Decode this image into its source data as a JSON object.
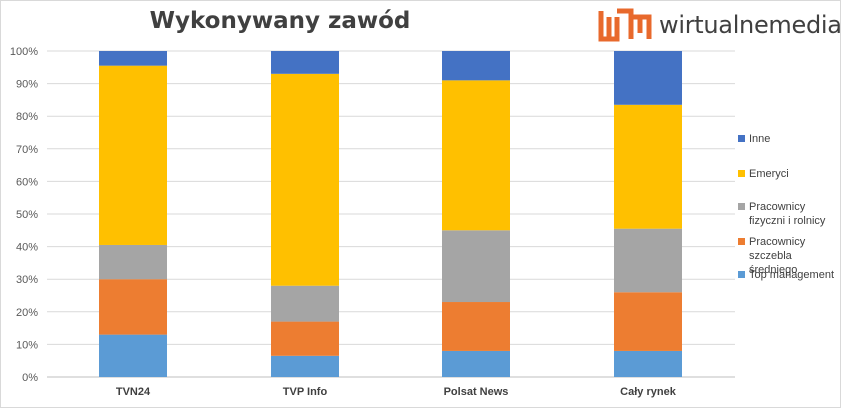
{
  "chart_data": {
    "type": "bar",
    "stacked": true,
    "title": "Wykonywany zawód",
    "categories": [
      "TVN24",
      "TVP Info",
      "Polsat News",
      "Cały rynek"
    ],
    "series": [
      {
        "name": "Top management",
        "color": "#5b9bd5",
        "values": [
          13,
          6.5,
          8,
          8
        ]
      },
      {
        "name": "Pracownicy szczebla średniego",
        "color": "#ed7d31",
        "values": [
          17,
          10.5,
          15,
          18
        ]
      },
      {
        "name": "Pracownicy fizyczni i rolnicy",
        "color": "#a5a5a5",
        "values": [
          10.5,
          11,
          22,
          19.5
        ]
      },
      {
        "name": "Emeryci",
        "color": "#ffc000",
        "values": [
          55,
          65,
          46,
          38
        ]
      },
      {
        "name": "Inne",
        "color": "#4472c4",
        "values": [
          4.5,
          7,
          9,
          16.5
        ]
      }
    ],
    "ylim": [
      0,
      100
    ],
    "yticks": [
      "0%",
      "10%",
      "20%",
      "30%",
      "40%",
      "50%",
      "60%",
      "70%",
      "80%",
      "90%",
      "100%"
    ],
    "grid": true,
    "legend_position": "right"
  },
  "logo": {
    "text": "wirtualnemedia.pl",
    "color": "#e8692c"
  }
}
